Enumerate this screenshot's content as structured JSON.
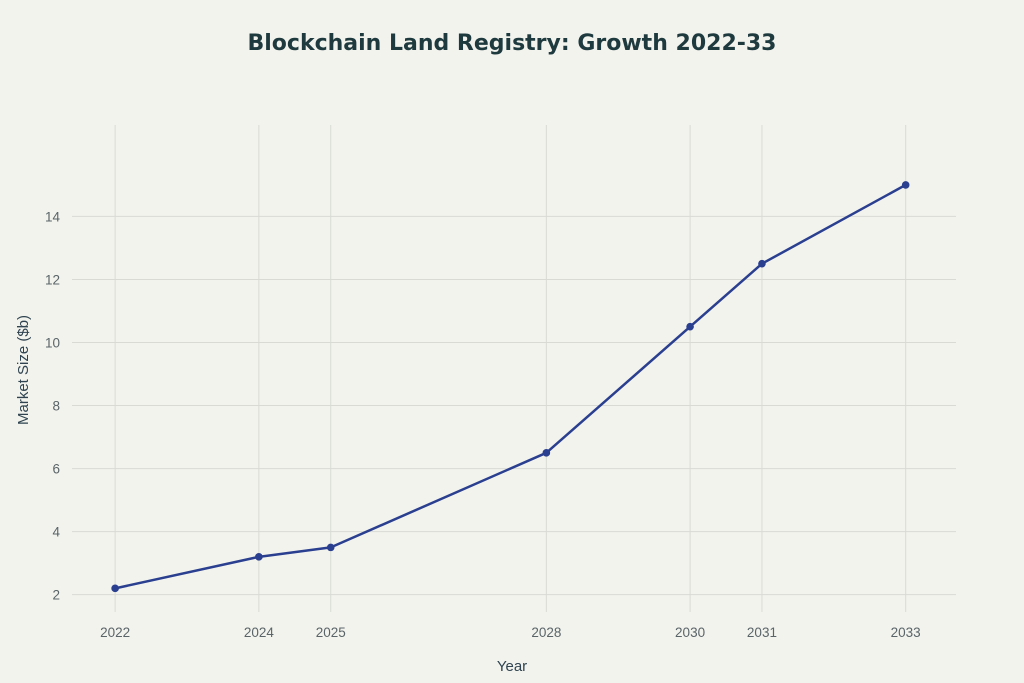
{
  "chart_data": {
    "type": "line",
    "title": "Blockchain Land Registry: Growth 2022-33",
    "xlabel": "Year",
    "ylabel": "Market Size ($b)",
    "x": [
      2022,
      2024,
      2025,
      2028,
      2030,
      2031,
      2033
    ],
    "x_ticks": [
      "2022",
      "2024",
      "2025",
      "2028",
      "2030",
      "2031",
      "2033"
    ],
    "y_ticks": [
      2,
      4,
      6,
      8,
      10,
      12,
      14
    ],
    "series": [
      {
        "values": [
          2.2,
          3.2,
          3.5,
          6.5,
          10.5,
          12.5,
          15.0
        ]
      }
    ],
    "xlim": [
      2021.4,
      2033.7
    ],
    "ylim": [
      1.45,
      16.9
    ],
    "grid": true,
    "colors": {
      "line": "#2a3f8f",
      "background": "#f3f3ee",
      "grid": "#d9dad4"
    }
  }
}
